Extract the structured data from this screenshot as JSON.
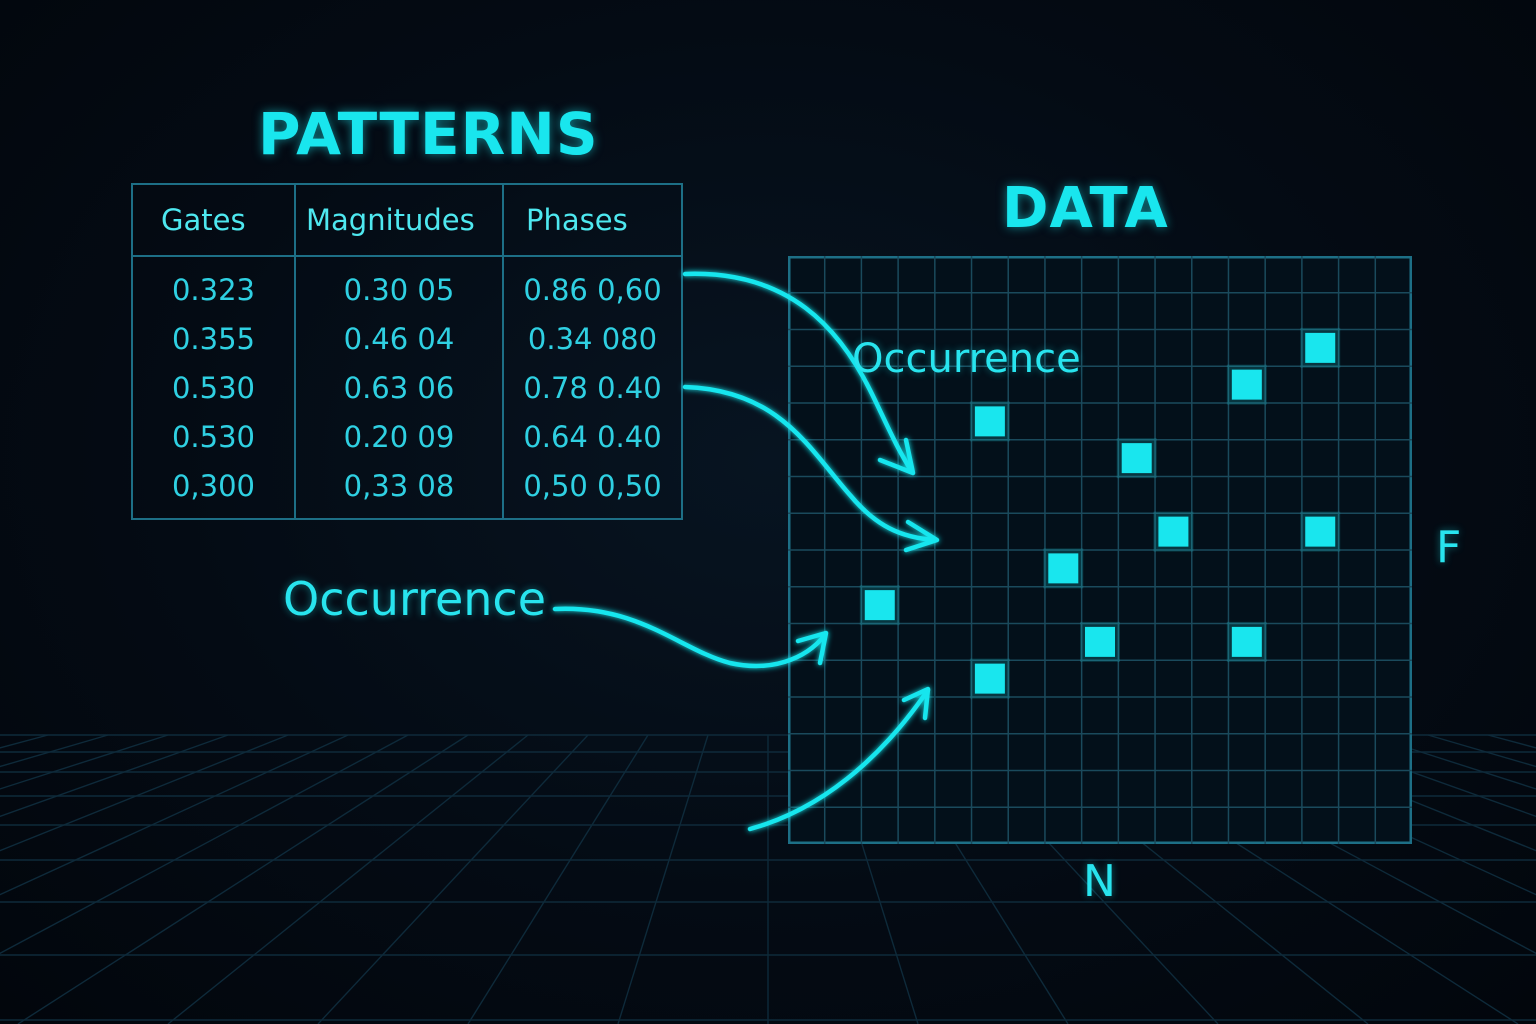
{
  "titles": {
    "patterns": "PATTERNS",
    "data": "DATA"
  },
  "table": {
    "headers": [
      "Gates",
      "Magnitudes",
      "Phases"
    ],
    "rows": [
      [
        "0.323",
        "0.30 05",
        "0.86 0,60"
      ],
      [
        "0.355",
        "0.46 04",
        "0.34 080"
      ],
      [
        "0.530",
        "0.63 06",
        "0.78 0.40"
      ],
      [
        "0.530",
        "0.20 09",
        "0.64 0.40"
      ],
      [
        "0,300",
        "0,33 08",
        "0,50 0,50"
      ]
    ]
  },
  "labels": {
    "occurrence_left": "Occurrence",
    "occurrence_inner": "Occurrence",
    "axis_f": "F",
    "axis_n": "N"
  },
  "grid": {
    "columns": 17,
    "rows": 16,
    "occupied_cells": [
      [
        14,
        2
      ],
      [
        12,
        3
      ],
      [
        5,
        4
      ],
      [
        9,
        5
      ],
      [
        10,
        7
      ],
      [
        14,
        7
      ],
      [
        7,
        8
      ],
      [
        2,
        9
      ],
      [
        8,
        10
      ],
      [
        12,
        10
      ],
      [
        5,
        11
      ]
    ]
  },
  "colors": {
    "accent": "#19e6ee",
    "grid_line": "#1a4a5c",
    "table_border": "#1d6f86",
    "background": "#040b14"
  }
}
